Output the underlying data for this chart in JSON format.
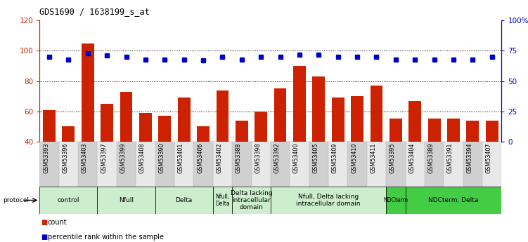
{
  "title": "GDS1690 / 1638199_s_at",
  "samples": [
    "GSM53393",
    "GSM53396",
    "GSM53403",
    "GSM53397",
    "GSM53399",
    "GSM53408",
    "GSM53390",
    "GSM53401",
    "GSM53406",
    "GSM53402",
    "GSM53388",
    "GSM53398",
    "GSM53392",
    "GSM53400",
    "GSM53405",
    "GSM53409",
    "GSM53410",
    "GSM53411",
    "GSM53395",
    "GSM53404",
    "GSM53389",
    "GSM53391",
    "GSM53394",
    "GSM53407"
  ],
  "counts": [
    61,
    50,
    105,
    65,
    73,
    59,
    57,
    69,
    50,
    74,
    54,
    60,
    75,
    90,
    83,
    69,
    70,
    77,
    55,
    67,
    55,
    55,
    54,
    54
  ],
  "percentiles": [
    70,
    68,
    73,
    71,
    70,
    68,
    68,
    68,
    67,
    70,
    68,
    70,
    70,
    72,
    72,
    70,
    70,
    70,
    68,
    68,
    68,
    68,
    68,
    70
  ],
  "ylim_left": [
    40,
    120
  ],
  "ylim_right": [
    0,
    100
  ],
  "yticks_left": [
    40,
    60,
    80,
    100,
    120
  ],
  "ytick_labels_right": [
    "0",
    "25",
    "50",
    "75",
    "100%"
  ],
  "bar_color": "#cc2200",
  "dot_color": "#0000cc",
  "groups": [
    {
      "label": "control",
      "start": 0,
      "end": 2,
      "color": "#cceecc"
    },
    {
      "label": "Nfull",
      "start": 3,
      "end": 5,
      "color": "#cceecc"
    },
    {
      "label": "Delta",
      "start": 6,
      "end": 8,
      "color": "#cceecc"
    },
    {
      "label": "Nfull,\nDelta",
      "start": 9,
      "end": 9,
      "color": "#cceecc"
    },
    {
      "label": "Delta lacking\nintracellular\ndomain",
      "start": 10,
      "end": 11,
      "color": "#cceecc"
    },
    {
      "label": "Nfull, Delta lacking\nintracellular domain",
      "start": 12,
      "end": 17,
      "color": "#cceecc"
    },
    {
      "label": "NDCterm",
      "start": 18,
      "end": 18,
      "color": "#44cc44"
    },
    {
      "label": "NDCterm, Delta",
      "start": 19,
      "end": 23,
      "color": "#44cc44"
    }
  ],
  "tick_color_left": "#cc2200",
  "tick_color_right": "#0000cc"
}
